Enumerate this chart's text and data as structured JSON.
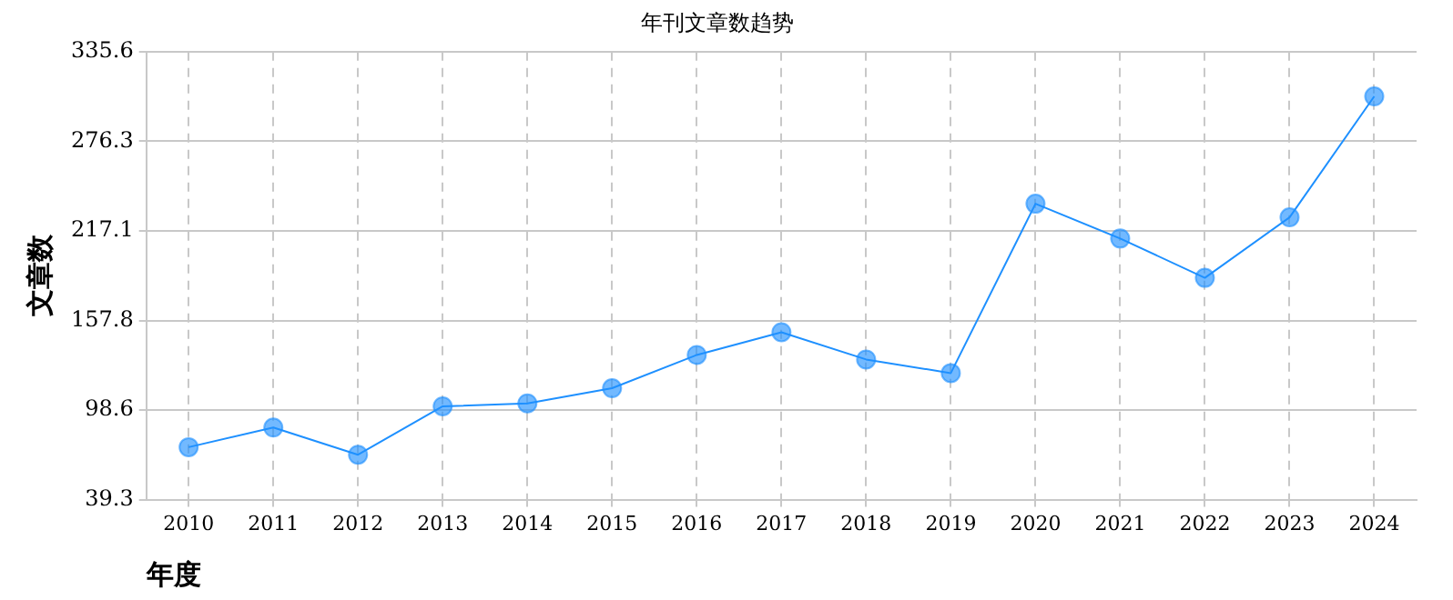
{
  "chart_data": {
    "type": "line",
    "title": "年刊文章数趋势",
    "xlabel": "年度",
    "ylabel": "文章数",
    "categories": [
      "2010",
      "2011",
      "2012",
      "2013",
      "2014",
      "2015",
      "2016",
      "2017",
      "2018",
      "2019",
      "2020",
      "2021",
      "2022",
      "2023",
      "2024"
    ],
    "series": [
      {
        "color": "#1e90ff",
        "values": [
          74,
          87,
          69,
          101,
          103,
          113,
          135,
          150,
          132,
          123,
          235,
          212,
          186,
          226,
          306
        ]
      }
    ],
    "ylim": [
      39.3,
      335.6
    ],
    "yticks": [
      39.3,
      98.6,
      157.8,
      217.1,
      276.3,
      335.6
    ],
    "grid": true,
    "marker": "circle",
    "line_style": "solid",
    "legend": false
  }
}
